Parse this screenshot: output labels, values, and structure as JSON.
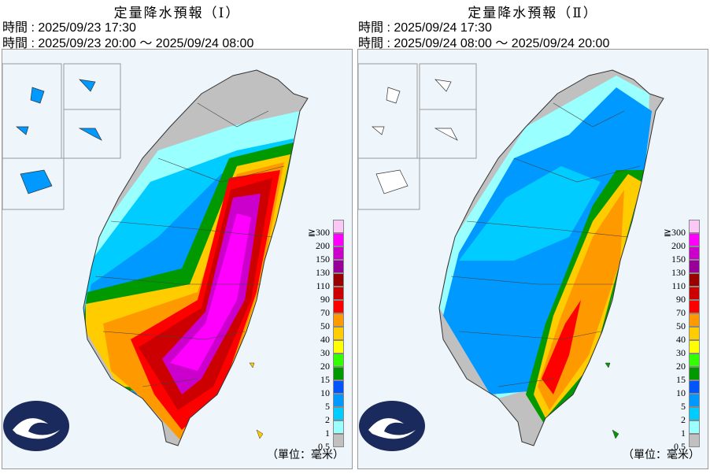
{
  "panels": [
    {
      "title": "定量降水預報（Ⅰ）",
      "issue": "時間 : 2025/09/23 17:30",
      "valid": "時間 : 2025/09/23 20:00 ～ 2025/09/24 08:00",
      "intensity": "heavy-east-south"
    },
    {
      "title": "定量降水預報（Ⅱ）",
      "issue": "時間 : 2025/09/24 17:30",
      "valid": "時間 : 2025/09/24 08:00 ～ 2025/09/24 20:00",
      "intensity": "moderate-east"
    }
  ],
  "legend": {
    "labels": [
      "≧300",
      "200",
      "150",
      "130",
      "110",
      "90",
      "70",
      "50",
      "40",
      "30",
      "20",
      "15",
      "10",
      "5",
      "2",
      "1",
      "0.5"
    ],
    "colors": [
      "#f9c8f5",
      "#ff00ff",
      "#cc00cc",
      "#990099",
      "#990000",
      "#cc0000",
      "#ff0000",
      "#ff9900",
      "#ffcc00",
      "#ffff00",
      "#33ff00",
      "#009900",
      "#0055ff",
      "#0099ff",
      "#00ccff",
      "#99ffff",
      "#c0c0c0"
    ],
    "unit": "（單位：毫米）"
  },
  "logo": "central-weather-administration-logo"
}
